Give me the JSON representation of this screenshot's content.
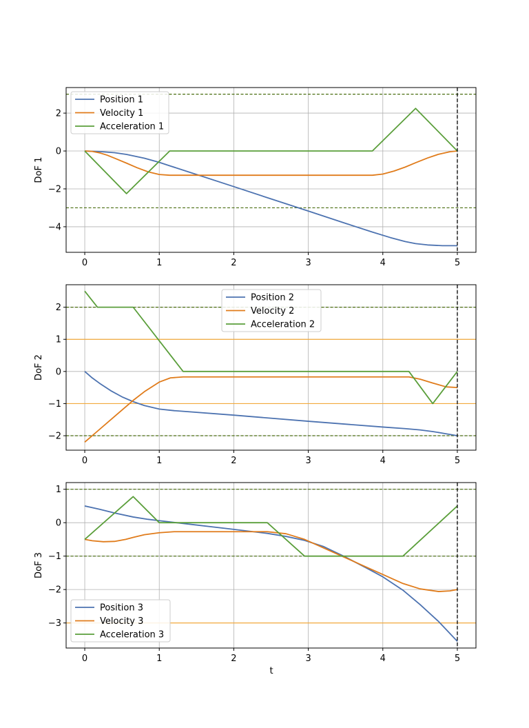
{
  "colors": {
    "position": "#4c72b0",
    "velocity": "#e07b1a",
    "acceleration": "#5a9e3a",
    "accel_limit": "#4a6e10",
    "vel_limit": "#f2a93b",
    "grid": "#b0b0b0",
    "end_line": "#000000"
  },
  "xlabel": "t",
  "chart_data": [
    {
      "type": "line",
      "ylabel": "DoF 1",
      "xlim": [
        -0.25,
        5.25
      ],
      "ylim": [
        -5.35,
        3.35
      ],
      "xticks": [
        0,
        1,
        2,
        3,
        4,
        5
      ],
      "yticks": [
        -4,
        -2,
        0,
        2
      ],
      "ytick_labels": [
        "−4",
        "−2",
        "0",
        "2"
      ],
      "grid": true,
      "legend": "top-left",
      "end_time": 5,
      "hlines": [
        {
          "y": 3,
          "kind": "accel_limit"
        },
        {
          "y": -3,
          "kind": "accel_limit"
        }
      ],
      "series": [
        {
          "name": "Position 1",
          "kind": "position",
          "x": [
            0,
            0.2,
            0.4,
            0.56,
            0.8,
            1.0,
            1.14,
            1.5,
            2,
            2.5,
            3,
            3.5,
            3.86,
            4.1,
            4.3,
            4.44,
            4.6,
            4.8,
            5
          ],
          "y": [
            0,
            -0.03,
            -0.09,
            -0.18,
            -0.38,
            -0.6,
            -0.78,
            -1.24,
            -1.88,
            -2.53,
            -3.17,
            -3.82,
            -4.28,
            -4.57,
            -4.78,
            -4.89,
            -4.96,
            -5.0,
            -5.0
          ]
        },
        {
          "name": "Velocity 1",
          "kind": "velocity",
          "x": [
            0,
            0.1,
            0.2,
            0.3,
            0.4,
            0.56,
            0.7,
            0.85,
            1.0,
            1.14,
            1.5,
            2,
            3,
            3.86,
            4.0,
            4.15,
            4.3,
            4.44,
            4.6,
            4.75,
            4.9,
            5
          ],
          "y": [
            0,
            -0.02,
            -0.1,
            -0.22,
            -0.38,
            -0.64,
            -0.88,
            -1.1,
            -1.24,
            -1.28,
            -1.28,
            -1.28,
            -1.28,
            -1.28,
            -1.22,
            -1.06,
            -0.85,
            -0.62,
            -0.37,
            -0.17,
            -0.04,
            0
          ]
        },
        {
          "name": "Acceleration 1",
          "kind": "acceleration",
          "x": [
            0,
            0.56,
            1.14,
            3.86,
            4.44,
            5
          ],
          "y": [
            0,
            -2.25,
            0,
            0,
            2.25,
            0
          ]
        }
      ]
    },
    {
      "type": "line",
      "ylabel": "DoF 2",
      "xlim": [
        -0.25,
        5.25
      ],
      "ylim": [
        -2.45,
        2.7
      ],
      "xticks": [
        0,
        1,
        2,
        3,
        4,
        5
      ],
      "yticks": [
        -2,
        -1,
        0,
        1,
        2
      ],
      "ytick_labels": [
        "−2",
        "−1",
        "0",
        "1",
        "2"
      ],
      "grid": true,
      "legend": "top-center",
      "end_time": 5,
      "hlines": [
        {
          "y": 1,
          "kind": "vel_limit"
        },
        {
          "y": -1,
          "kind": "vel_limit"
        },
        {
          "y": 2,
          "kind": "accel_limit"
        },
        {
          "y": -2,
          "kind": "accel_limit"
        }
      ],
      "series": [
        {
          "name": "Position 2",
          "kind": "position",
          "x": [
            0,
            0.1,
            0.2,
            0.35,
            0.5,
            0.65,
            0.8,
            1.0,
            1.2,
            1.32,
            2,
            3,
            4,
            4.3,
            4.5,
            4.67,
            4.85,
            5
          ],
          "y": [
            0,
            -0.2,
            -0.37,
            -0.6,
            -0.79,
            -0.94,
            -1.06,
            -1.17,
            -1.22,
            -1.24,
            -1.36,
            -1.55,
            -1.73,
            -1.78,
            -1.82,
            -1.87,
            -1.94,
            -2.0
          ]
        },
        {
          "name": "Velocity 2",
          "kind": "velocity",
          "x": [
            0,
            0.17,
            0.4,
            0.65,
            0.8,
            1.0,
            1.15,
            1.32,
            2,
            3,
            4,
            4.35,
            4.5,
            4.67,
            4.85,
            5
          ],
          "y": [
            -2.2,
            -1.86,
            -1.4,
            -0.9,
            -0.63,
            -0.33,
            -0.2,
            -0.17,
            -0.17,
            -0.17,
            -0.17,
            -0.17,
            -0.24,
            -0.36,
            -0.48,
            -0.5
          ]
        },
        {
          "name": "Acceleration 2",
          "kind": "acceleration",
          "x": [
            0,
            0.17,
            0.65,
            1.32,
            4.35,
            4.67,
            5
          ],
          "y": [
            2.5,
            2.0,
            2.0,
            0,
            0,
            -1.0,
            0
          ]
        }
      ]
    },
    {
      "type": "line",
      "ylabel": "DoF 3",
      "xlim": [
        -0.25,
        5.25
      ],
      "ylim": [
        -3.75,
        1.2
      ],
      "xticks": [
        0,
        1,
        2,
        3,
        4,
        5
      ],
      "yticks": [
        -3,
        -2,
        -1,
        0,
        1
      ],
      "ytick_labels": [
        "−3",
        "−2",
        "−1",
        "0",
        "1"
      ],
      "grid": true,
      "legend": "bottom-left",
      "end_time": 5,
      "hlines": [
        {
          "y": -3,
          "kind": "vel_limit"
        },
        {
          "y": 1,
          "kind": "accel_limit"
        },
        {
          "y": -1,
          "kind": "accel_limit"
        }
      ],
      "series": [
        {
          "name": "Position 3",
          "kind": "position",
          "x": [
            0,
            0.2,
            0.4,
            0.65,
            0.85,
            1.0,
            1.5,
            2,
            2.45,
            2.7,
            2.95,
            3.2,
            3.5,
            3.8,
            4.0,
            4.27,
            4.5,
            4.75,
            5
          ],
          "y": [
            0.5,
            0.4,
            0.29,
            0.17,
            0.1,
            0.06,
            -0.07,
            -0.2,
            -0.32,
            -0.41,
            -0.53,
            -0.71,
            -1.03,
            -1.38,
            -1.62,
            -2.02,
            -2.45,
            -2.96,
            -3.55
          ]
        },
        {
          "name": "Velocity 3",
          "kind": "velocity",
          "x": [
            0,
            0.1,
            0.25,
            0.4,
            0.55,
            0.65,
            0.8,
            1.0,
            1.2,
            1.5,
            2,
            2.45,
            2.7,
            2.95,
            3.3,
            3.7,
            4.0,
            4.27,
            4.5,
            4.75,
            4.9,
            5
          ],
          "y": [
            -0.5,
            -0.54,
            -0.57,
            -0.56,
            -0.5,
            -0.44,
            -0.36,
            -0.3,
            -0.27,
            -0.27,
            -0.27,
            -0.27,
            -0.33,
            -0.5,
            -0.85,
            -1.25,
            -1.55,
            -1.82,
            -1.98,
            -2.06,
            -2.04,
            -2.0
          ]
        },
        {
          "name": "Acceleration 3",
          "kind": "acceleration",
          "x": [
            0,
            0.65,
            1.0,
            2.45,
            2.95,
            4.27,
            5
          ],
          "y": [
            -0.5,
            0.78,
            0,
            0,
            -1.0,
            -1.0,
            0.5
          ]
        }
      ]
    }
  ]
}
